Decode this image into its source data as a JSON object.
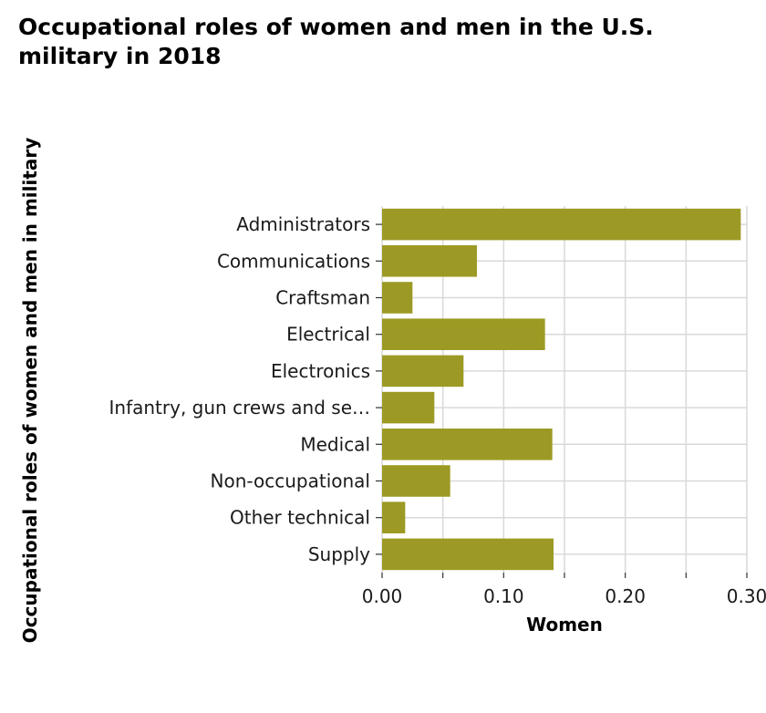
{
  "chart_data": {
    "type": "bar",
    "orientation": "horizontal",
    "title": "Occupational roles of women and men in the U.S. military in 2018",
    "xlabel": "Women",
    "ylabel": "Occupational roles of women and men in military",
    "categories": [
      "Administrators",
      "Communications",
      "Craftsman",
      "Electrical",
      "Electronics",
      "Infantry, gun crews and se…",
      "Medical",
      "Non-occupational",
      "Other technical",
      "Supply"
    ],
    "values": [
      0.295,
      0.078,
      0.025,
      0.134,
      0.067,
      0.043,
      0.14,
      0.056,
      0.019,
      0.141
    ],
    "xlim": [
      0,
      0.3
    ],
    "x_ticks": [
      "0.00",
      "0.10",
      "0.20",
      "0.30"
    ],
    "grid": true,
    "legend": "none",
    "bar_color": "#9c9a24",
    "grid_color": "#d9d9d9"
  }
}
